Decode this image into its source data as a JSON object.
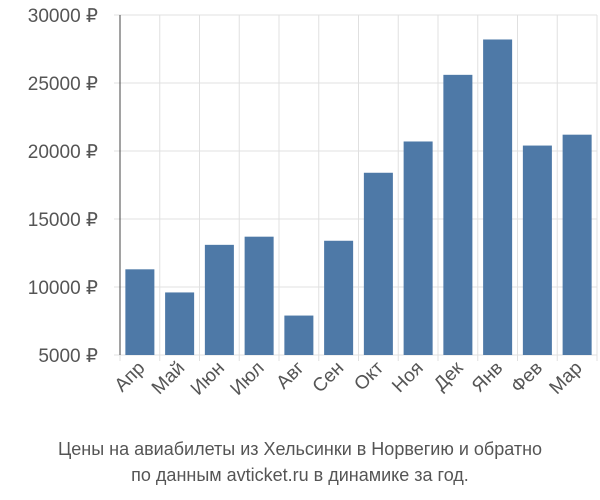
{
  "chart_data": {
    "type": "bar",
    "categories": [
      "Апр",
      "Май",
      "Июн",
      "Июл",
      "Авг",
      "Сен",
      "Окт",
      "Ноя",
      "Дек",
      "Янв",
      "Фев",
      "Мар"
    ],
    "values": [
      11300,
      9600,
      13100,
      13700,
      7900,
      13400,
      18400,
      20700,
      25600,
      28200,
      20400,
      21200
    ],
    "ylim": [
      5000,
      30000
    ],
    "yticks": [
      5000,
      10000,
      15000,
      20000,
      25000,
      30000
    ],
    "currency_suffix": " ₽",
    "bar_color": "#4e79a7",
    "grid": true
  },
  "caption": {
    "line1": "Цены на авиабилеты из Хельсинки в Норвегию и обратно",
    "line2": "по данным avticket.ru в динамике за год."
  }
}
